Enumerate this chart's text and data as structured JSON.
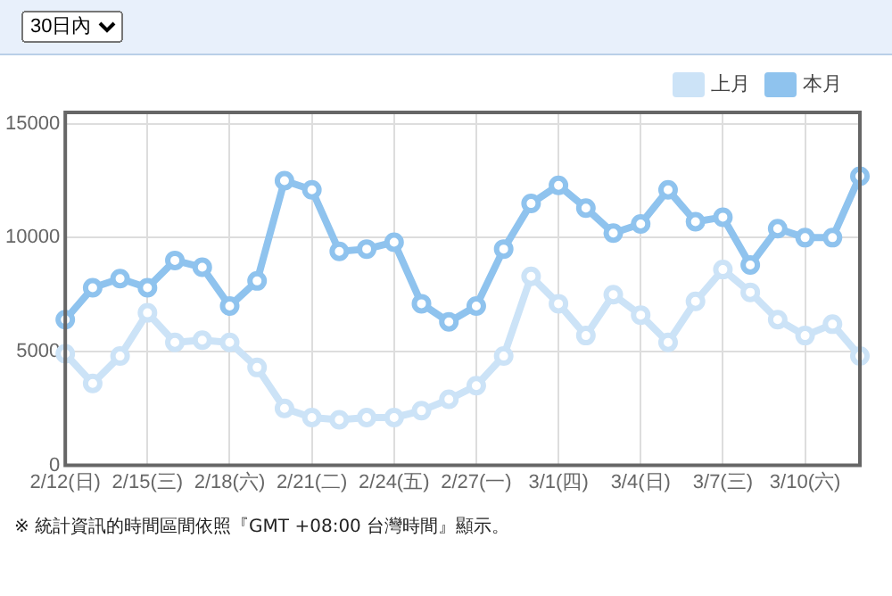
{
  "chart_data": {
    "type": "line",
    "categories": [
      "2/12(日)",
      null,
      null,
      "2/15(三)",
      null,
      null,
      "2/18(六)",
      null,
      null,
      "2/21(二)",
      null,
      null,
      "2/24(五)",
      null,
      null,
      "2/27(一)",
      null,
      null,
      "3/1(四)",
      null,
      null,
      "3/4(日)",
      null,
      null,
      "3/7(三)",
      null,
      null,
      "3/10(六)",
      null,
      null
    ],
    "series": [
      {
        "name": "上月",
        "color": "#cce3f7",
        "values": [
          4900,
          3600,
          4800,
          6700,
          5400,
          5500,
          5400,
          4300,
          2500,
          2100,
          2000,
          2100,
          2100,
          2400,
          2900,
          3500,
          4800,
          8300,
          7100,
          5700,
          7500,
          6600,
          5400,
          7200,
          8600,
          7600,
          6400,
          5700,
          6200,
          4800
        ]
      },
      {
        "name": "本月",
        "color": "#8fc3ee",
        "values": [
          6400,
          7800,
          8200,
          7800,
          9000,
          8700,
          7000,
          8100,
          12500,
          12100,
          9400,
          9500,
          9800,
          7100,
          6300,
          7000,
          9500,
          11500,
          12300,
          11300,
          10200,
          10600,
          12100,
          10700,
          10900,
          8800,
          10400,
          10000,
          10000,
          12700
        ]
      }
    ],
    "ylim": [
      0,
      15500
    ],
    "yticks": [
      0,
      5000,
      10000,
      15000
    ],
    "grid": true,
    "legend": "top right",
    "marker": "circle",
    "line_style": "solid",
    "annotations": [
      "30日內",
      "※ 統計資訊的時間區間依照『GMT +08:00 台灣時間』顯示。"
    ]
  }
}
